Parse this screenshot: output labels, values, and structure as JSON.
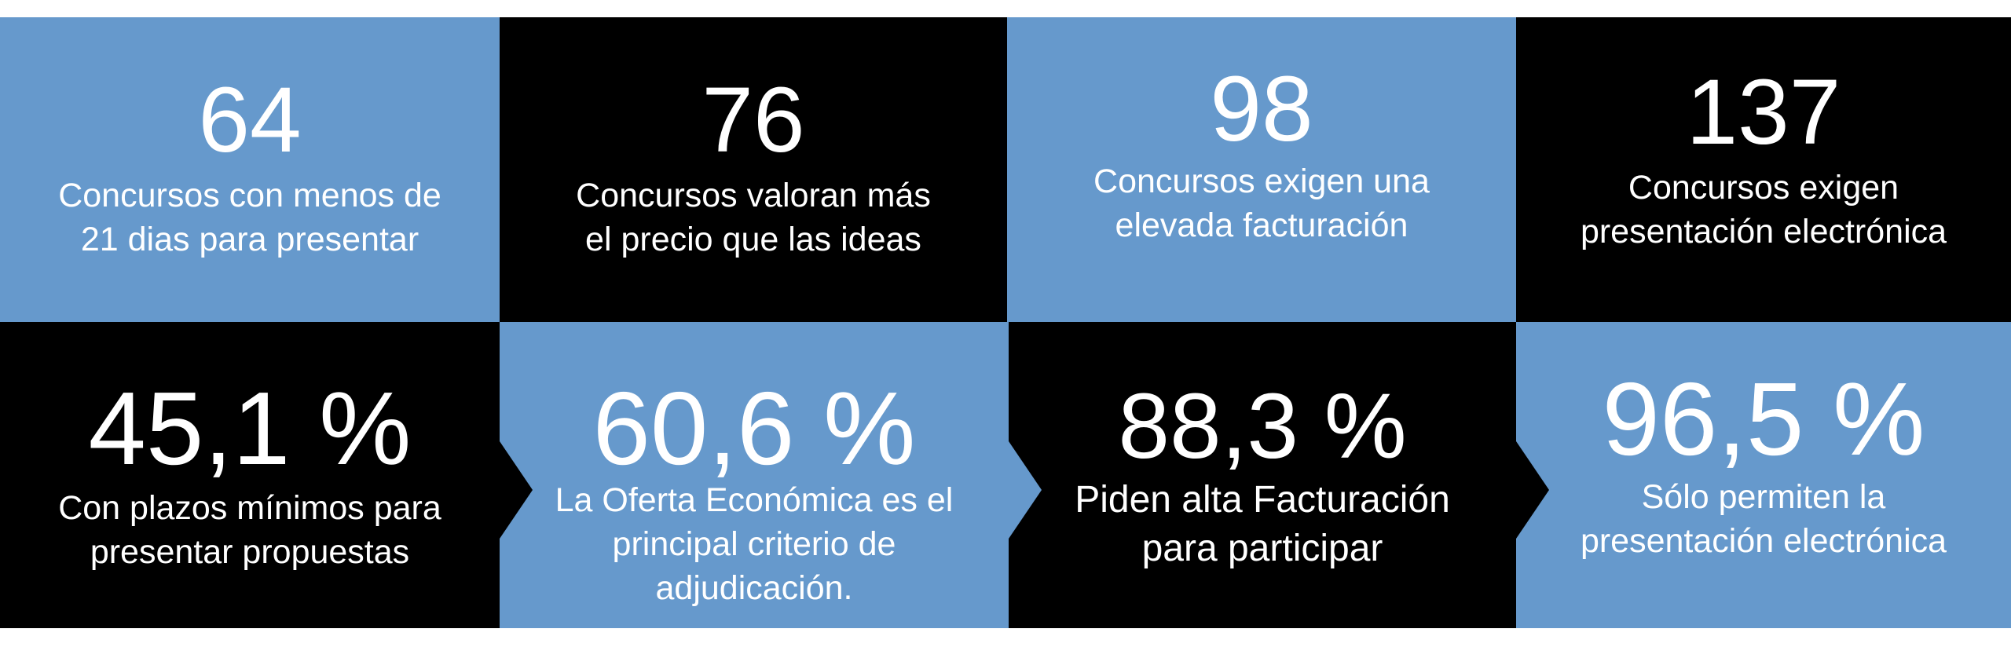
{
  "tiles": [
    {
      "value": "64",
      "lines": [
        "Concursos con menos de",
        "21 dias para presentar"
      ]
    },
    {
      "value": "76",
      "lines": [
        "Concursos valoran más",
        "el precio que las ideas"
      ]
    },
    {
      "value": "98",
      "lines": [
        "Concursos exigen una",
        "elevada facturación"
      ]
    },
    {
      "value": "137",
      "lines": [
        "Concursos exigen",
        "presentación electrónica"
      ]
    },
    {
      "value": "45,1 %",
      "lines": [
        "Con plazos mínimos para",
        "presentar propuestas"
      ]
    },
    {
      "value": "60,6 %",
      "lines": [
        "La Oferta Económica es el",
        "principal criterio de",
        "adjudicación."
      ]
    },
    {
      "value": "88,3 %",
      "lines": [
        "Piden alta Facturación",
        "para participar"
      ]
    },
    {
      "value": "96,5 %",
      "lines": [
        "Sólo permiten la",
        "presentación electrónica"
      ]
    }
  ],
  "colors": {
    "blue": "#6699cc",
    "black": "#000000",
    "text": "#ffffff"
  }
}
